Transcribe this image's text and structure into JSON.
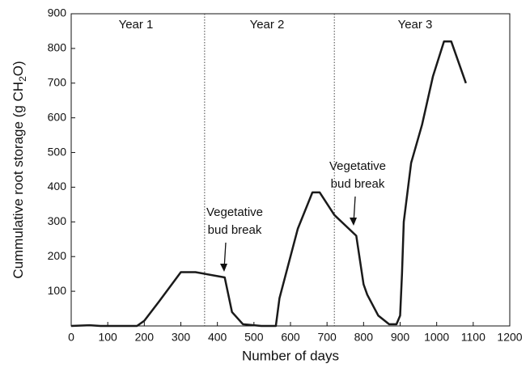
{
  "chart_data": {
    "type": "line",
    "xlabel": "Number of days",
    "ylabel": [
      "Cummulative root storage (g CH",
      "2",
      "O)"
    ],
    "annotations": [
      "Year 1",
      "Year 2",
      "Year 3",
      [
        "Vegetative",
        "bud break"
      ],
      [
        "Vegetative",
        "bud break"
      ]
    ],
    "x": [
      0,
      50,
      80,
      180,
      200,
      240,
      300,
      340,
      420,
      440,
      470,
      520,
      560,
      570,
      620,
      660,
      680,
      720,
      780,
      800,
      810,
      840,
      870,
      890,
      900,
      905,
      910,
      930,
      960,
      990,
      1020,
      1040,
      1080
    ],
    "values": [
      0,
      2,
      0,
      0,
      15,
      70,
      155,
      155,
      140,
      40,
      5,
      0,
      0,
      80,
      280,
      385,
      385,
      320,
      260,
      120,
      90,
      30,
      5,
      5,
      30,
      150,
      300,
      470,
      580,
      720,
      820,
      820,
      700
    ],
    "color": "#1a1a1a",
    "dividers": [
      365,
      720
    ],
    "xlim": [
      0,
      1200
    ],
    "xticks": [
      0,
      100,
      200,
      300,
      400,
      500,
      600,
      700,
      800,
      900,
      1000,
      1100,
      1200
    ],
    "ylim": [
      0,
      900
    ],
    "yticks": [
      100,
      200,
      300,
      400,
      500,
      600,
      700,
      800,
      900
    ]
  }
}
